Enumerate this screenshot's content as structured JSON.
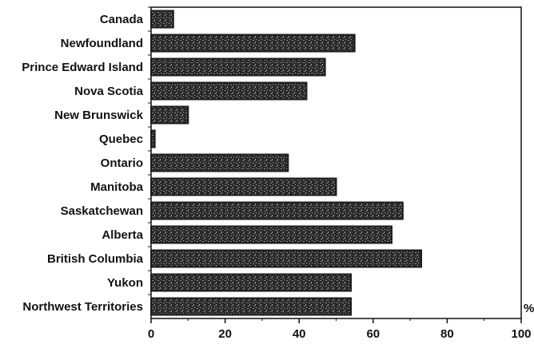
{
  "chart_data": {
    "type": "bar",
    "orientation": "horizontal",
    "categories": [
      "Canada",
      "Newfoundland",
      "Prince Edward Island",
      "Nova Scotia",
      "New Brunswick",
      "Quebec",
      "Ontario",
      "Manitoba",
      "Saskatchewan",
      "Alberta",
      "British Columbia",
      "Yukon",
      "Northwest Territories"
    ],
    "values": [
      6,
      55,
      47,
      42,
      10,
      1,
      37,
      50,
      68,
      65,
      73,
      54,
      54
    ],
    "xlim": [
      0,
      100
    ],
    "xticks": [
      0,
      20,
      40,
      60,
      80,
      100
    ],
    "unit": "%",
    "grid": false,
    "legend": "none",
    "bar_color": "#1c1c1c",
    "bar_texture_color": "#9a9a9a"
  }
}
